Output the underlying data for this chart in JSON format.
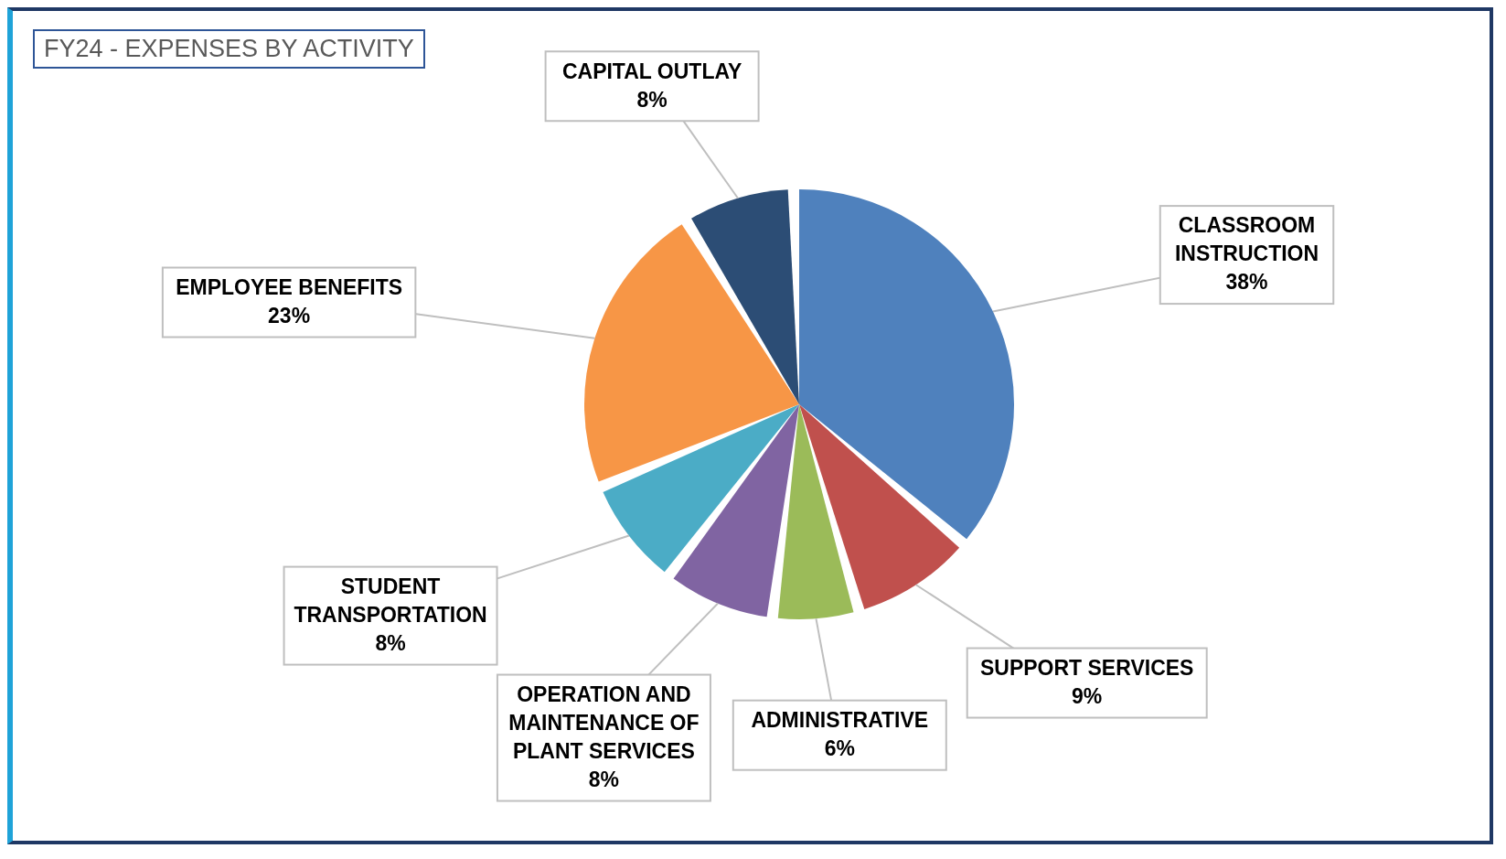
{
  "chart_data": {
    "type": "pie",
    "title": "FY24 - EXPENSES BY ACTIVITY",
    "categories": [
      "CLASSROOM INSTRUCTION",
      "SUPPORT SERVICES",
      "ADMINISTRATIVE",
      "OPERATION AND MAINTENANCE OF PLANT SERVICES",
      "STUDENT TRANSPORTATION",
      "EMPLOYEE BENEFITS",
      "CAPITAL OUTLAY"
    ],
    "values": [
      38,
      9,
      6,
      8,
      8,
      23,
      8
    ],
    "value_labels": [
      "38%",
      "9%",
      "6%",
      "8%",
      "8%",
      "23%",
      "8%"
    ],
    "colors": [
      "#4f81bd",
      "#c0504d",
      "#9bbb59",
      "#8064a2",
      "#4bacc6",
      "#f79646",
      "#2c4d75"
    ],
    "legend": false
  }
}
